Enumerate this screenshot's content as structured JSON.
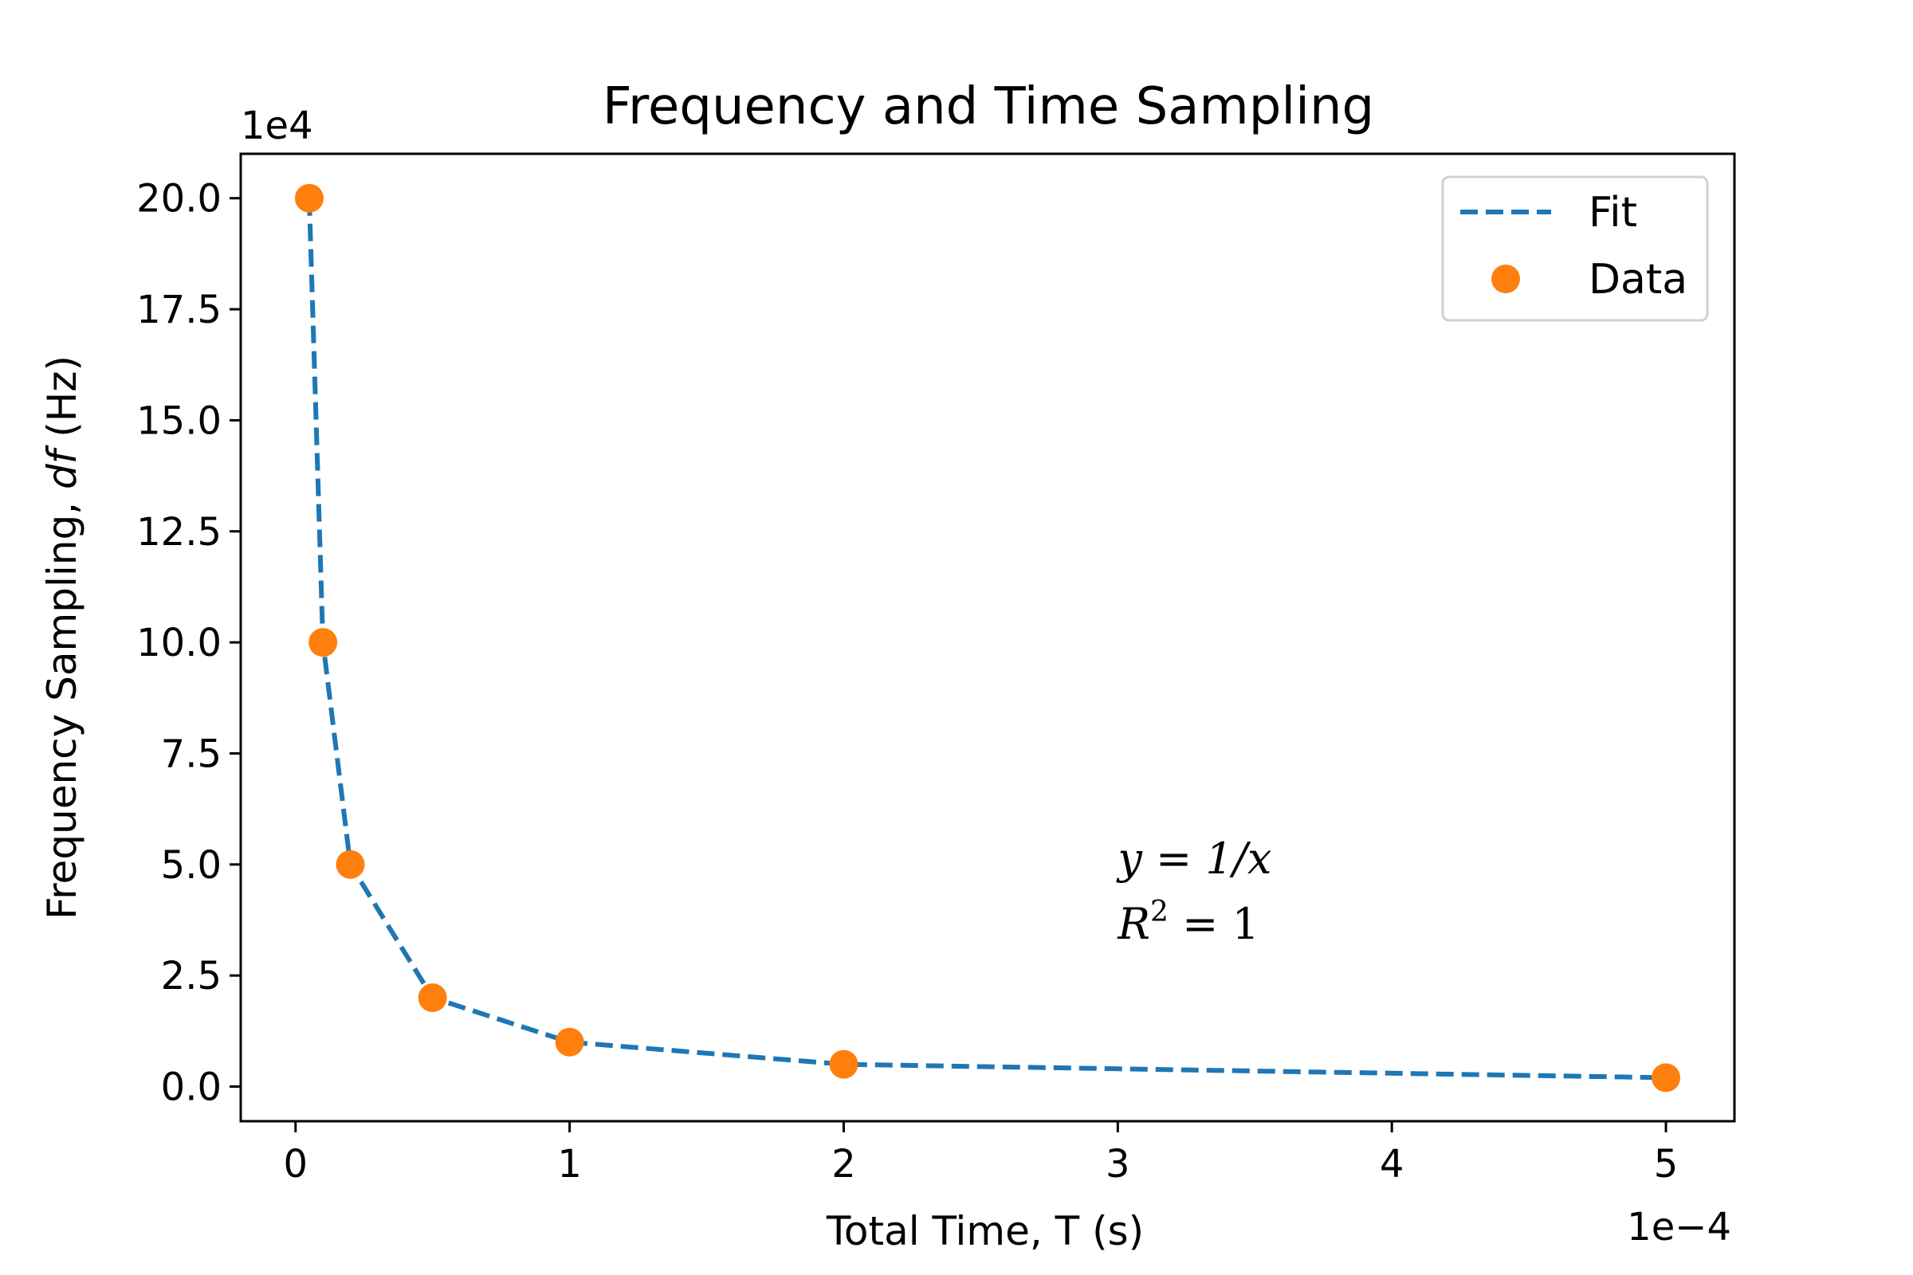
{
  "chart_data": {
    "type": "line",
    "title": "Frequency and Time Sampling",
    "xlabel": "Total Time, T (s)",
    "ylabel": "Frequency Sampling, df   (Hz)",
    "x_offset_label": "1e−4",
    "y_offset_label": "1e4",
    "xlim": [
      -2e-05,
      0.000525
    ],
    "ylim": [
      -7800,
      210000
    ],
    "x_ticks": [
      0,
      0.0001,
      0.0002,
      0.0003,
      0.0004,
      0.0005
    ],
    "x_tick_labels": [
      "0",
      "1",
      "2",
      "3",
      "4",
      "5"
    ],
    "y_ticks": [
      0,
      25000,
      50000,
      75000,
      100000,
      125000,
      150000,
      175000,
      200000
    ],
    "y_tick_labels": [
      "0.0",
      "2.5",
      "5.0",
      "7.5",
      "10.0",
      "12.5",
      "15.0",
      "17.5",
      "20.0"
    ],
    "grid": false,
    "legend_position": "upper-right",
    "series": [
      {
        "name": "Fit",
        "style": "dashed-line",
        "color": "#1f77b4",
        "x": [
          5e-06,
          1e-05,
          2e-05,
          5e-05,
          0.0001,
          0.0002,
          0.0005
        ],
        "y": [
          200000,
          100000,
          50000,
          20000,
          10000,
          5000,
          2000
        ]
      },
      {
        "name": "Data",
        "style": "markers",
        "color": "#ff7f0e",
        "x": [
          5e-06,
          1e-05,
          2e-05,
          5e-05,
          0.0001,
          0.0002,
          0.0005
        ],
        "y": [
          200000,
          100000,
          50000,
          20000,
          10000,
          5000,
          2000
        ]
      }
    ],
    "annotation": {
      "line1": "y = 1/x",
      "line2_prefix": "R",
      "line2_sup": "2",
      "line2_suffix": " = 1",
      "x": 0.0003,
      "y": 43000
    }
  }
}
